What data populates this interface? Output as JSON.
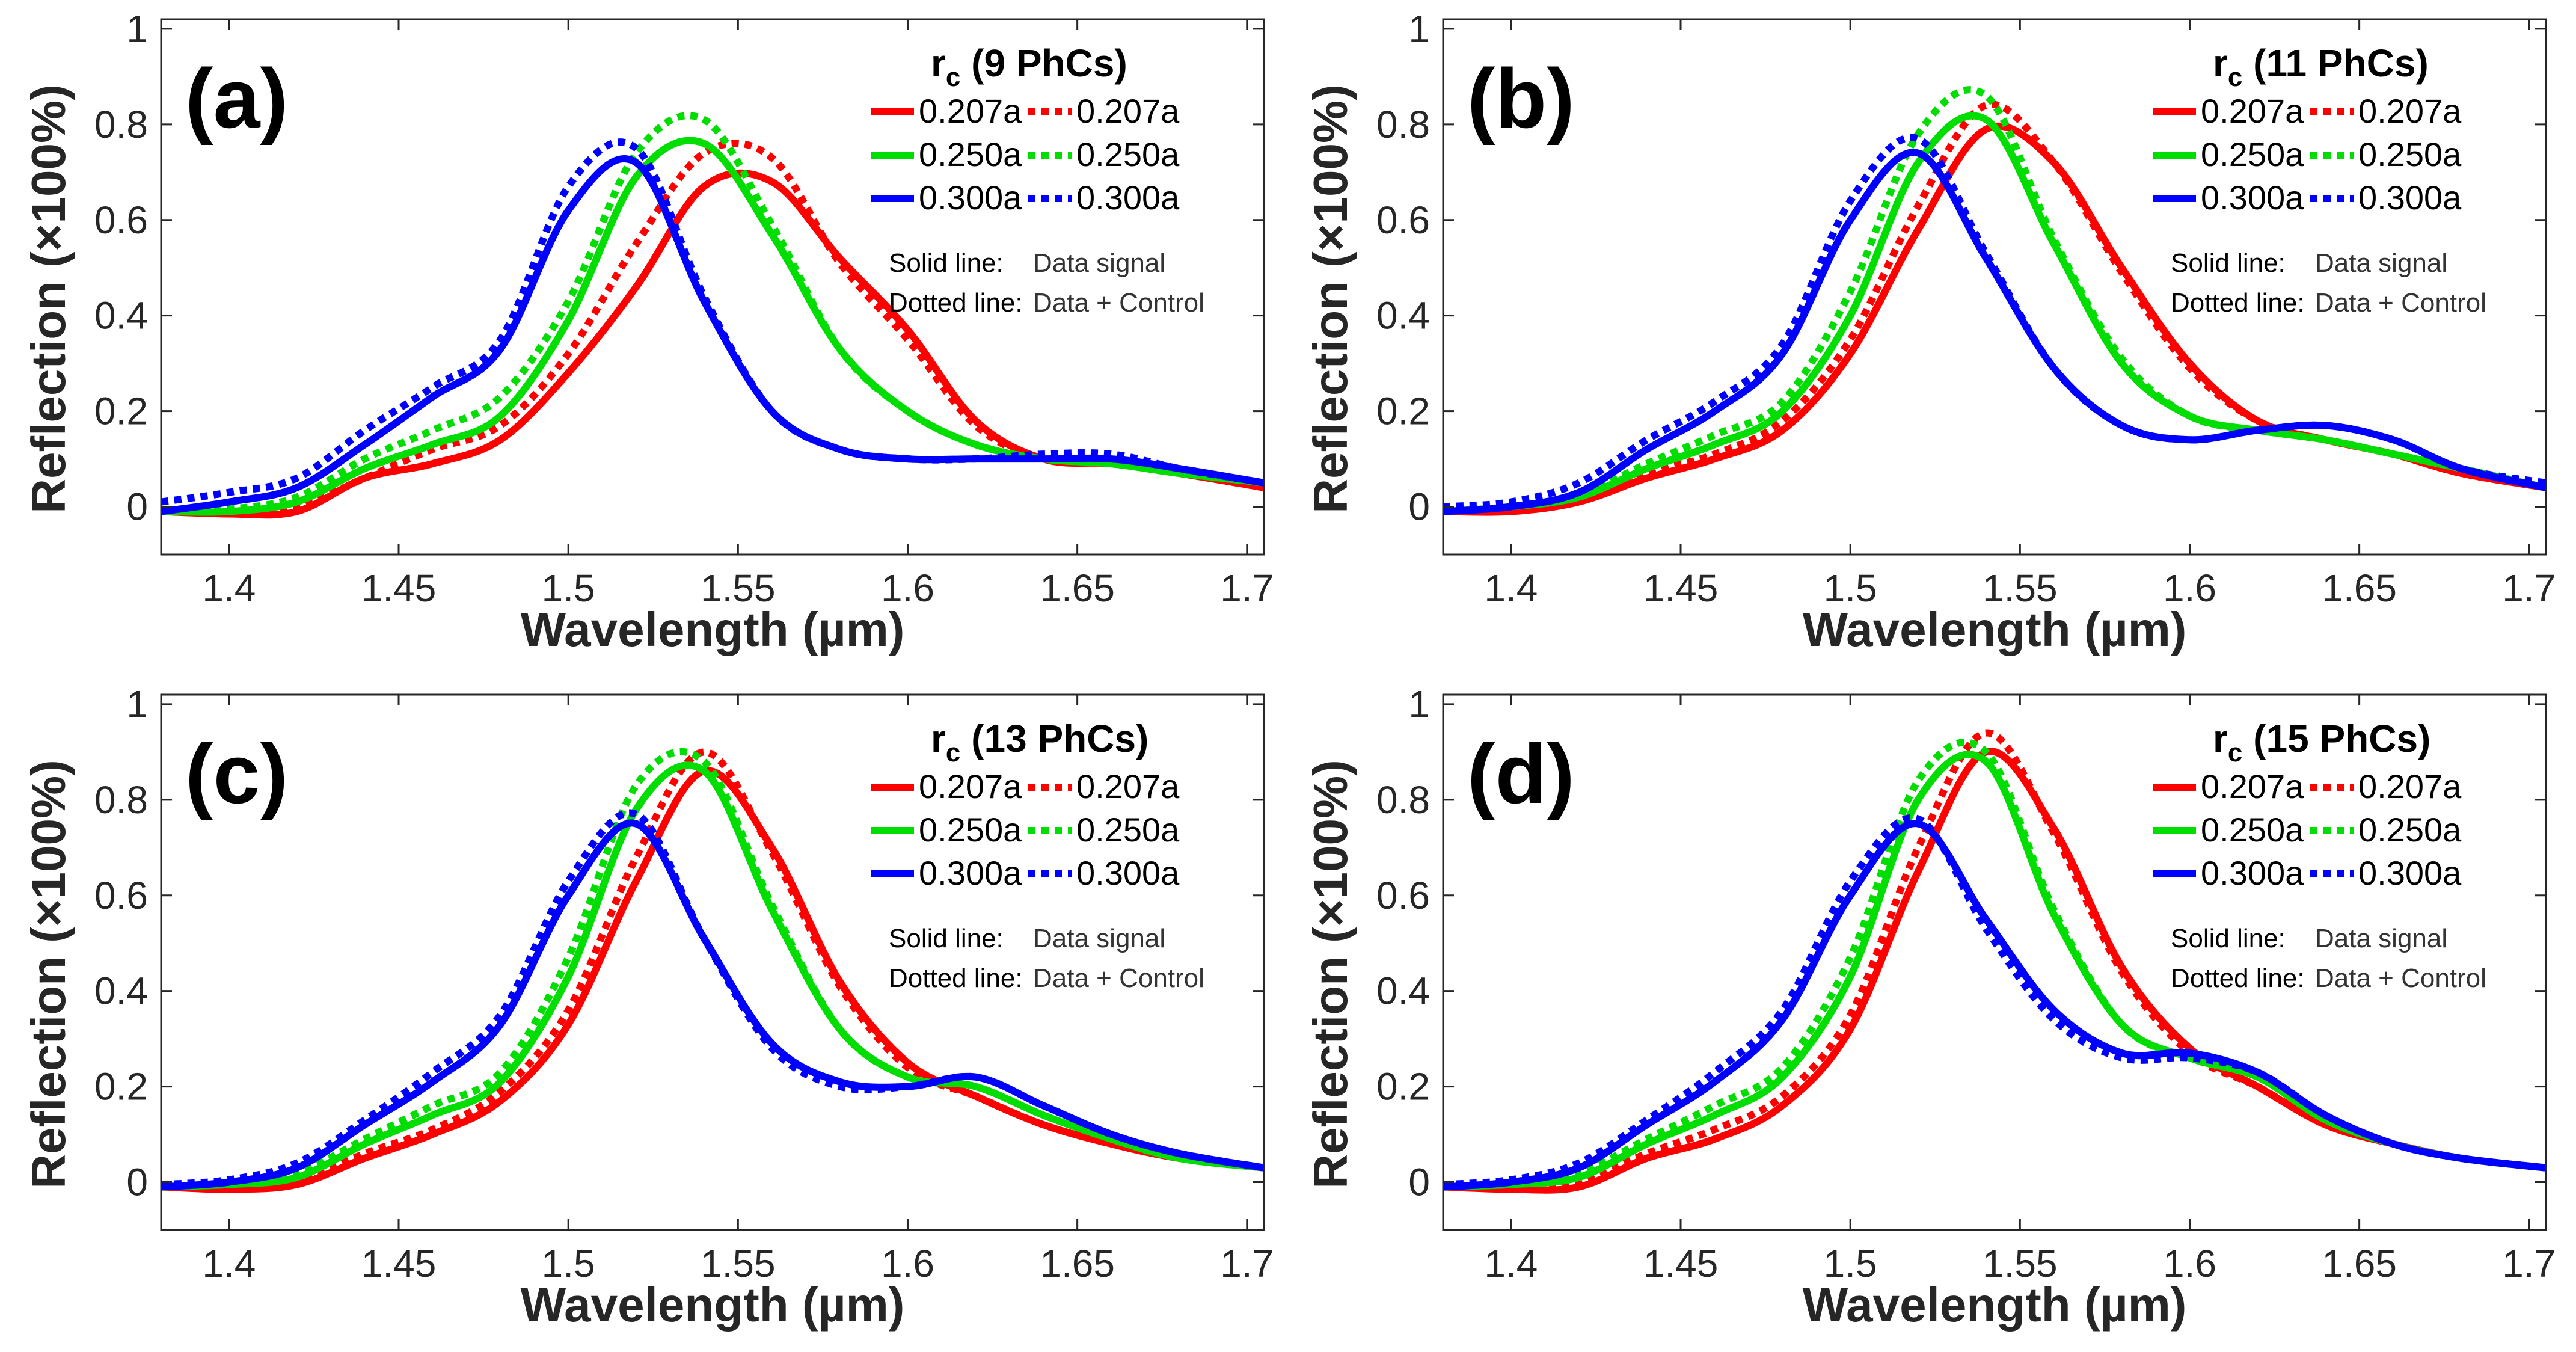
{
  "figure": {
    "legend_note_solid": "Solid line:",
    "legend_note_solid_value": "Data signal",
    "legend_note_dotted": "Dotted line:",
    "legend_note_dotted_value": "Data + Control"
  },
  "chart_data": [
    {
      "type": "line",
      "panel_label": "(a)",
      "legend_title": "r",
      "legend_title_sub": "c",
      "legend_title_rest": " (9 PhCs)",
      "xlabel": "Wavelength (µm)",
      "ylabel": "Reflection (×100%)",
      "xlim": [
        1.38,
        1.705
      ],
      "ylim": [
        -0.1,
        1.02
      ],
      "xticks": [
        1.4,
        1.45,
        1.5,
        1.55,
        1.6,
        1.65,
        1.7
      ],
      "xtick_labels": [
        "1.4",
        "1.45",
        "1.5",
        "1.55",
        "1.6",
        "1.65",
        "1.7"
      ],
      "yticks": [
        0,
        0.2,
        0.4,
        0.6,
        0.8,
        1
      ],
      "ytick_labels": [
        "0",
        "0.2",
        "0.4",
        "0.6",
        "0.8",
        "1"
      ],
      "legend_entries": [
        "0.207a",
        "0.207a",
        "0.250a",
        "0.250a",
        "0.300a",
        "0.300a"
      ],
      "x": [
        1.38,
        1.4,
        1.42,
        1.44,
        1.46,
        1.48,
        1.5,
        1.52,
        1.54,
        1.56,
        1.58,
        1.6,
        1.62,
        1.64,
        1.66,
        1.68,
        1.705
      ],
      "series": [
        {
          "name": "0.207a Data signal",
          "color": "#ff0000",
          "style": "solid",
          "values": [
            -0.01,
            -0.015,
            -0.01,
            0.06,
            0.09,
            0.14,
            0.28,
            0.46,
            0.67,
            0.68,
            0.52,
            0.37,
            0.18,
            0.1,
            0.09,
            0.07,
            0.04
          ]
        },
        {
          "name": "0.207a Data + Control",
          "color": "#ff0000",
          "style": "dotted",
          "values": [
            -0.01,
            -0.01,
            0.0,
            0.06,
            0.12,
            0.17,
            0.32,
            0.55,
            0.74,
            0.73,
            0.51,
            0.35,
            0.17,
            0.1,
            0.09,
            0.07,
            0.04
          ]
        },
        {
          "name": "0.250a Data signal",
          "color": "#00dd00",
          "style": "solid",
          "values": [
            -0.01,
            -0.01,
            0.01,
            0.08,
            0.13,
            0.19,
            0.39,
            0.69,
            0.76,
            0.57,
            0.33,
            0.2,
            0.13,
            0.1,
            0.09,
            0.07,
            0.05
          ]
        },
        {
          "name": "0.250a Data + Control",
          "color": "#00dd00",
          "style": "dotted",
          "values": [
            -0.01,
            -0.005,
            0.02,
            0.1,
            0.16,
            0.23,
            0.43,
            0.74,
            0.81,
            0.59,
            0.33,
            0.2,
            0.13,
            0.1,
            0.09,
            0.07,
            0.05
          ]
        },
        {
          "name": "0.300a Data signal",
          "color": "#0000ff",
          "style": "solid",
          "values": [
            -0.01,
            0.01,
            0.04,
            0.13,
            0.23,
            0.33,
            0.62,
            0.72,
            0.43,
            0.2,
            0.12,
            0.1,
            0.1,
            0.1,
            0.1,
            0.08,
            0.05
          ]
        },
        {
          "name": "0.300a Data + Control",
          "color": "#0000ff",
          "style": "dotted",
          "values": [
            0.01,
            0.03,
            0.06,
            0.16,
            0.25,
            0.35,
            0.67,
            0.75,
            0.44,
            0.2,
            0.12,
            0.1,
            0.1,
            0.11,
            0.11,
            0.08,
            0.05
          ]
        }
      ]
    },
    {
      "type": "line",
      "panel_label": "(b)",
      "legend_title": "r",
      "legend_title_sub": "c",
      "legend_title_rest": " (11 PhCs)",
      "xlabel": "Wavelength (µm)",
      "ylabel": "Reflection (×100%)",
      "xlim": [
        1.38,
        1.705
      ],
      "ylim": [
        -0.1,
        1.02
      ],
      "xticks": [
        1.4,
        1.45,
        1.5,
        1.55,
        1.6,
        1.65,
        1.7
      ],
      "xtick_labels": [
        "1.4",
        "1.45",
        "1.5",
        "1.55",
        "1.6",
        "1.65",
        "1.7"
      ],
      "yticks": [
        0,
        0.2,
        0.4,
        0.6,
        0.8,
        1
      ],
      "ytick_labels": [
        "0",
        "0.2",
        "0.4",
        "0.6",
        "0.8",
        "1"
      ],
      "legend_entries": [
        "0.207a",
        "0.207a",
        "0.250a",
        "0.250a",
        "0.300a",
        "0.300a"
      ],
      "x": [
        1.38,
        1.4,
        1.42,
        1.44,
        1.46,
        1.48,
        1.5,
        1.52,
        1.54,
        1.56,
        1.58,
        1.6,
        1.62,
        1.64,
        1.66,
        1.68,
        1.705
      ],
      "series": [
        {
          "name": "0.207a Data signal",
          "color": "#ff0000",
          "style": "solid",
          "values": [
            -0.01,
            -0.01,
            0.01,
            0.06,
            0.1,
            0.16,
            0.32,
            0.58,
            0.79,
            0.72,
            0.5,
            0.3,
            0.18,
            0.14,
            0.11,
            0.07,
            0.04
          ]
        },
        {
          "name": "0.207a Data + Control",
          "color": "#ff0000",
          "style": "dotted",
          "values": [
            -0.01,
            -0.005,
            0.015,
            0.07,
            0.11,
            0.18,
            0.35,
            0.63,
            0.84,
            0.72,
            0.49,
            0.29,
            0.18,
            0.14,
            0.11,
            0.07,
            0.04
          ]
        },
        {
          "name": "0.250a Data signal",
          "color": "#00dd00",
          "style": "solid",
          "values": [
            -0.01,
            0.0,
            0.02,
            0.08,
            0.13,
            0.2,
            0.4,
            0.72,
            0.81,
            0.55,
            0.3,
            0.19,
            0.16,
            0.14,
            0.11,
            0.08,
            0.04
          ]
        },
        {
          "name": "0.250a Data + Control",
          "color": "#00dd00",
          "style": "dotted",
          "values": [
            -0.01,
            0.0,
            0.025,
            0.09,
            0.15,
            0.22,
            0.45,
            0.78,
            0.86,
            0.56,
            0.31,
            0.19,
            0.16,
            0.14,
            0.11,
            0.08,
            0.04
          ]
        },
        {
          "name": "0.300a Data signal",
          "color": "#0000ff",
          "style": "solid",
          "values": [
            -0.01,
            0.0,
            0.03,
            0.12,
            0.2,
            0.32,
            0.6,
            0.74,
            0.52,
            0.29,
            0.17,
            0.14,
            0.16,
            0.17,
            0.14,
            0.08,
            0.04
          ]
        },
        {
          "name": "0.300a Data + Control",
          "color": "#0000ff",
          "style": "dotted",
          "values": [
            0.0,
            0.01,
            0.05,
            0.14,
            0.22,
            0.34,
            0.64,
            0.77,
            0.53,
            0.29,
            0.17,
            0.14,
            0.16,
            0.17,
            0.14,
            0.08,
            0.05
          ]
        }
      ]
    },
    {
      "type": "line",
      "panel_label": "(c)",
      "legend_title": "r",
      "legend_title_sub": "c",
      "legend_title_rest": " (13 PhCs)",
      "xlabel": "Wavelength (µm)",
      "ylabel": "Reflection (×100%)",
      "xlim": [
        1.38,
        1.705
      ],
      "ylim": [
        -0.1,
        1.02
      ],
      "xticks": [
        1.4,
        1.45,
        1.5,
        1.55,
        1.6,
        1.65,
        1.7
      ],
      "xtick_labels": [
        "1.4",
        "1.45",
        "1.5",
        "1.55",
        "1.6",
        "1.65",
        "1.7"
      ],
      "yticks": [
        0,
        0.2,
        0.4,
        0.6,
        0.8,
        1
      ],
      "ytick_labels": [
        "0",
        "0.2",
        "0.4",
        "0.6",
        "0.8",
        "1"
      ],
      "legend_entries": [
        "0.207a",
        "0.207a",
        "0.250a",
        "0.250a",
        "0.300a",
        "0.300a"
      ],
      "x": [
        1.38,
        1.4,
        1.42,
        1.44,
        1.46,
        1.48,
        1.5,
        1.52,
        1.54,
        1.56,
        1.58,
        1.6,
        1.62,
        1.64,
        1.66,
        1.68,
        1.705
      ],
      "series": [
        {
          "name": "0.207a Data signal",
          "color": "#ff0000",
          "style": "solid",
          "values": [
            -0.01,
            -0.015,
            -0.005,
            0.05,
            0.1,
            0.17,
            0.33,
            0.63,
            0.86,
            0.7,
            0.42,
            0.25,
            0.18,
            0.12,
            0.08,
            0.05,
            0.03
          ]
        },
        {
          "name": "0.207a Data + Control",
          "color": "#ff0000",
          "style": "dotted",
          "values": [
            -0.01,
            -0.01,
            0.0,
            0.06,
            0.11,
            0.19,
            0.36,
            0.68,
            0.9,
            0.69,
            0.41,
            0.24,
            0.18,
            0.12,
            0.08,
            0.05,
            0.03
          ]
        },
        {
          "name": "0.250a Data signal",
          "color": "#00dd00",
          "style": "solid",
          "values": [
            -0.01,
            -0.005,
            0.01,
            0.08,
            0.14,
            0.21,
            0.43,
            0.78,
            0.86,
            0.57,
            0.32,
            0.22,
            0.2,
            0.14,
            0.09,
            0.05,
            0.03
          ]
        },
        {
          "name": "0.250a Data + Control",
          "color": "#00dd00",
          "style": "dotted",
          "values": [
            -0.01,
            0.0,
            0.02,
            0.09,
            0.16,
            0.23,
            0.47,
            0.83,
            0.88,
            0.58,
            0.32,
            0.22,
            0.2,
            0.14,
            0.09,
            0.05,
            0.03
          ]
        },
        {
          "name": "0.300a Data signal",
          "color": "#0000ff",
          "style": "solid",
          "values": [
            -0.01,
            0.0,
            0.03,
            0.12,
            0.21,
            0.33,
            0.6,
            0.75,
            0.51,
            0.29,
            0.21,
            0.2,
            0.22,
            0.16,
            0.1,
            0.06,
            0.03
          ]
        },
        {
          "name": "0.300a Data + Control",
          "color": "#0000ff",
          "style": "dotted",
          "values": [
            -0.005,
            0.005,
            0.04,
            0.13,
            0.23,
            0.35,
            0.63,
            0.77,
            0.51,
            0.28,
            0.2,
            0.2,
            0.22,
            0.16,
            0.1,
            0.06,
            0.03
          ]
        }
      ]
    },
    {
      "type": "line",
      "panel_label": "(d)",
      "legend_title": "r",
      "legend_title_sub": "c",
      "legend_title_rest": " (15 PhCs)",
      "xlabel": "Wavelength (µm)",
      "ylabel": "Reflection (×100%)",
      "xlim": [
        1.38,
        1.705
      ],
      "ylim": [
        -0.1,
        1.02
      ],
      "xticks": [
        1.4,
        1.45,
        1.5,
        1.55,
        1.6,
        1.65,
        1.7
      ],
      "xtick_labels": [
        "1.4",
        "1.45",
        "1.5",
        "1.55",
        "1.6",
        "1.65",
        "1.7"
      ],
      "yticks": [
        0,
        0.2,
        0.4,
        0.6,
        0.8,
        1
      ],
      "ytick_labels": [
        "0",
        "0.2",
        "0.4",
        "0.6",
        "0.8",
        "1"
      ],
      "legend_entries": [
        "0.207a",
        "0.207a",
        "0.250a",
        "0.250a",
        "0.300a",
        "0.300a"
      ],
      "x": [
        1.38,
        1.4,
        1.42,
        1.44,
        1.46,
        1.48,
        1.5,
        1.52,
        1.54,
        1.56,
        1.58,
        1.6,
        1.62,
        1.64,
        1.66,
        1.68,
        1.705
      ],
      "series": [
        {
          "name": "0.207a Data signal",
          "color": "#ff0000",
          "style": "solid",
          "values": [
            -0.01,
            -0.015,
            -0.01,
            0.05,
            0.09,
            0.16,
            0.32,
            0.65,
            0.9,
            0.74,
            0.45,
            0.28,
            0.2,
            0.12,
            0.08,
            0.05,
            0.03
          ]
        },
        {
          "name": "0.207a Data + Control",
          "color": "#ff0000",
          "style": "dotted",
          "values": [
            -0.01,
            -0.01,
            0.0,
            0.06,
            0.11,
            0.18,
            0.35,
            0.7,
            0.94,
            0.73,
            0.44,
            0.27,
            0.2,
            0.12,
            0.08,
            0.05,
            0.03
          ]
        },
        {
          "name": "0.250a Data signal",
          "color": "#00dd00",
          "style": "solid",
          "values": [
            -0.01,
            -0.005,
            0.01,
            0.08,
            0.14,
            0.22,
            0.43,
            0.8,
            0.88,
            0.56,
            0.33,
            0.26,
            0.22,
            0.13,
            0.08,
            0.05,
            0.03
          ]
        },
        {
          "name": "0.250a Data + Control",
          "color": "#00dd00",
          "style": "dotted",
          "values": [
            -0.01,
            0.0,
            0.02,
            0.09,
            0.16,
            0.24,
            0.47,
            0.84,
            0.9,
            0.57,
            0.33,
            0.26,
            0.22,
            0.13,
            0.08,
            0.05,
            0.03
          ]
        },
        {
          "name": "0.300a Data signal",
          "color": "#0000ff",
          "style": "solid",
          "values": [
            -0.01,
            0.0,
            0.03,
            0.12,
            0.21,
            0.34,
            0.6,
            0.75,
            0.55,
            0.36,
            0.27,
            0.27,
            0.23,
            0.14,
            0.08,
            0.05,
            0.03
          ]
        },
        {
          "name": "0.300a Data + Control",
          "color": "#0000ff",
          "style": "dotted",
          "values": [
            -0.005,
            0.005,
            0.04,
            0.13,
            0.23,
            0.36,
            0.63,
            0.76,
            0.53,
            0.34,
            0.26,
            0.26,
            0.23,
            0.14,
            0.08,
            0.05,
            0.03
          ]
        }
      ]
    }
  ]
}
